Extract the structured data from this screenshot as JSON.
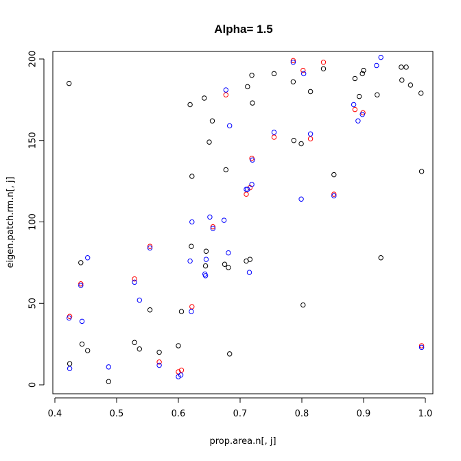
{
  "chart_data": {
    "type": "scatter",
    "title": "Alpha= 1.5",
    "xlabel": "prop.area.n[, j]",
    "ylabel": "eigen.patch.rm.n[, j]",
    "xlim": [
      0.4,
      1.0
    ],
    "ylim": [
      0,
      200
    ],
    "xticks": [
      "0.4",
      "0.5",
      "0.6",
      "0.7",
      "0.8",
      "0.9",
      "1.0"
    ],
    "yticks": [
      "0",
      "50",
      "100",
      "150",
      "200"
    ],
    "grid": false,
    "legend": "none",
    "series": [
      {
        "color": "#000000",
        "points": [
          [
            0.423,
            185
          ],
          [
            0.424,
            13
          ],
          [
            0.442,
            75
          ],
          [
            0.444,
            25
          ],
          [
            0.453,
            21
          ],
          [
            0.487,
            2
          ],
          [
            0.529,
            26
          ],
          [
            0.537,
            22
          ],
          [
            0.554,
            46
          ],
          [
            0.569,
            20
          ],
          [
            0.6,
            24
          ],
          [
            0.605,
            45
          ],
          [
            0.619,
            172
          ],
          [
            0.621,
            85
          ],
          [
            0.622,
            128
          ],
          [
            0.642,
            176
          ],
          [
            0.644,
            73
          ],
          [
            0.645,
            82
          ],
          [
            0.65,
            149
          ],
          [
            0.655,
            162
          ],
          [
            0.675,
            74
          ],
          [
            0.677,
            132
          ],
          [
            0.681,
            72
          ],
          [
            0.683,
            19
          ],
          [
            0.71,
            76
          ],
          [
            0.712,
            183
          ],
          [
            0.716,
            77
          ],
          [
            0.719,
            190
          ],
          [
            0.72,
            173
          ],
          [
            0.755,
            191
          ],
          [
            0.786,
            186
          ],
          [
            0.787,
            150
          ],
          [
            0.799,
            148
          ],
          [
            0.802,
            49
          ],
          [
            0.814,
            180
          ],
          [
            0.835,
            194
          ],
          [
            0.852,
            129
          ],
          [
            0.886,
            188
          ],
          [
            0.893,
            177
          ],
          [
            0.898,
            191
          ],
          [
            0.9,
            193
          ],
          [
            0.922,
            178
          ],
          [
            0.928,
            78
          ],
          [
            0.961,
            195
          ],
          [
            0.962,
            187
          ],
          [
            0.969,
            195
          ],
          [
            0.976,
            184
          ],
          [
            0.993,
            179
          ],
          [
            0.994,
            131
          ]
        ]
      },
      {
        "color": "#ff0000",
        "points": [
          [
            0.424,
            42
          ],
          [
            0.442,
            62
          ],
          [
            0.529,
            65
          ],
          [
            0.554,
            85
          ],
          [
            0.569,
            14
          ],
          [
            0.6,
            8
          ],
          [
            0.605,
            9
          ],
          [
            0.622,
            48
          ],
          [
            0.656,
            97
          ],
          [
            0.677,
            178
          ],
          [
            0.71,
            117
          ],
          [
            0.716,
            121
          ],
          [
            0.719,
            139
          ],
          [
            0.755,
            152
          ],
          [
            0.786,
            199
          ],
          [
            0.802,
            193
          ],
          [
            0.814,
            151
          ],
          [
            0.835,
            198
          ],
          [
            0.852,
            117
          ],
          [
            0.886,
            169
          ],
          [
            0.899,
            167
          ],
          [
            0.994,
            24
          ]
        ]
      },
      {
        "color": "#0000ff",
        "points": [
          [
            0.423,
            41
          ],
          [
            0.424,
            10
          ],
          [
            0.442,
            61
          ],
          [
            0.444,
            39
          ],
          [
            0.453,
            78
          ],
          [
            0.487,
            11
          ],
          [
            0.529,
            63
          ],
          [
            0.537,
            52
          ],
          [
            0.554,
            84
          ],
          [
            0.569,
            12
          ],
          [
            0.6,
            5
          ],
          [
            0.604,
            6
          ],
          [
            0.619,
            76
          ],
          [
            0.621,
            45
          ],
          [
            0.622,
            100
          ],
          [
            0.643,
            68
          ],
          [
            0.644,
            67
          ],
          [
            0.645,
            77
          ],
          [
            0.651,
            103
          ],
          [
            0.656,
            96
          ],
          [
            0.674,
            101
          ],
          [
            0.677,
            181
          ],
          [
            0.681,
            81
          ],
          [
            0.683,
            159
          ],
          [
            0.71,
            120
          ],
          [
            0.712,
            120
          ],
          [
            0.715,
            69
          ],
          [
            0.719,
            123
          ],
          [
            0.72,
            138
          ],
          [
            0.755,
            155
          ],
          [
            0.786,
            198
          ],
          [
            0.799,
            114
          ],
          [
            0.803,
            191
          ],
          [
            0.814,
            154
          ],
          [
            0.852,
            116
          ],
          [
            0.884,
            172
          ],
          [
            0.891,
            162
          ],
          [
            0.898,
            166
          ],
          [
            0.921,
            196
          ],
          [
            0.928,
            201
          ],
          [
            0.994,
            23
          ]
        ]
      }
    ]
  }
}
